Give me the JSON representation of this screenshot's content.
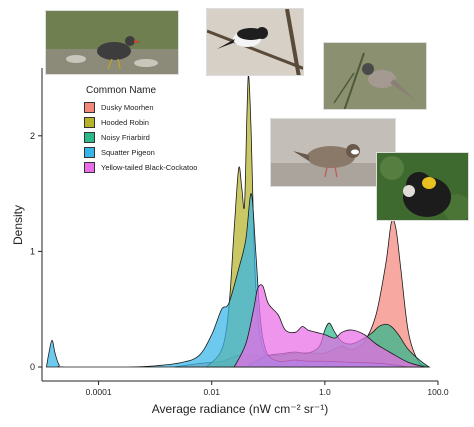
{
  "chart_data": {
    "type": "area",
    "title": "",
    "xlabel": "Average radiance (nW cm⁻² sr⁻¹)",
    "ylabel": "Density",
    "xscale": "log10",
    "xlim": [
      1e-05,
      100
    ],
    "ylim": [
      0,
      2.5
    ],
    "xticks": [
      {
        "value": 0.0001,
        "label": "0.0001"
      },
      {
        "value": 0.01,
        "label": "0.01"
      },
      {
        "value": 1,
        "label": "1.0"
      },
      {
        "value": 100,
        "label": "100.0"
      }
    ],
    "yticks": [
      {
        "value": 0,
        "label": "0"
      },
      {
        "value": 1,
        "label": "1"
      },
      {
        "value": 2,
        "label": "2"
      }
    ],
    "grid": false,
    "legend": {
      "title": "Common Name",
      "position": "top-left"
    },
    "series": [
      {
        "name": "Dusky Moorhen",
        "color": "#f4877b",
        "x": [
          0.0022,
          0.006,
          0.015,
          0.03,
          0.07,
          0.15,
          0.3,
          0.6,
          1.0,
          1.4,
          2.0,
          3.0,
          5.0,
          8.0,
          12.0,
          15.0,
          18.0,
          22.0,
          30.0,
          45.0,
          70.0
        ],
        "values": [
          0,
          0.03,
          0.05,
          0.1,
          0.1,
          0.1,
          0.12,
          0.12,
          0.12,
          0.15,
          0.18,
          0.15,
          0.22,
          0.45,
          0.9,
          1.25,
          1.2,
          0.85,
          0.3,
          0.05,
          0
        ]
      },
      {
        "name": "Hooded Robin",
        "color": "#b5b32a",
        "x": [
          0.008,
          0.015,
          0.02,
          0.025,
          0.03,
          0.034,
          0.038,
          0.042,
          0.045,
          0.05,
          0.055,
          0.06,
          0.07,
          0.09,
          0.12,
          0.15
        ],
        "values": [
          0,
          0.15,
          0.5,
          1.2,
          1.72,
          1.55,
          1.4,
          2.2,
          2.52,
          2.0,
          1.2,
          0.7,
          0.3,
          0.1,
          0.03,
          0
        ]
      },
      {
        "name": "Noisy Friarbird",
        "color": "#2bb88a",
        "x": [
          0.04,
          0.06,
          0.1,
          0.2,
          0.3,
          0.5,
          0.8,
          1.0,
          1.2,
          1.5,
          2.0,
          3.0,
          5.0,
          7.0,
          9.0,
          12.0,
          15.0,
          20.0,
          30.0,
          50.0,
          70.0
        ],
        "values": [
          0,
          0.05,
          0.1,
          0.12,
          0.13,
          0.12,
          0.18,
          0.32,
          0.38,
          0.3,
          0.22,
          0.2,
          0.25,
          0.3,
          0.35,
          0.37,
          0.35,
          0.28,
          0.15,
          0.05,
          0
        ]
      },
      {
        "name": "Squatter Pigeon",
        "color": "#35b6e8",
        "x": [
          1.2e-05,
          1.3e-05,
          1.5e-05,
          1.7e-05,
          2e-05,
          2.5e-05,
          0.0003,
          0.001,
          0.003,
          0.006,
          0.01,
          0.015,
          0.02,
          0.03,
          0.04,
          0.05,
          0.06,
          0.07,
          0.08,
          0.1,
          0.15,
          0.2,
          0.3,
          0.5,
          1.0,
          3.0,
          10.0,
          30.0
        ],
        "values": [
          0,
          0.1,
          0.23,
          0.12,
          0.02,
          0,
          0,
          0.01,
          0.04,
          0.1,
          0.28,
          0.5,
          0.55,
          0.85,
          1.1,
          1.5,
          1.0,
          0.5,
          0.25,
          0.1,
          0.05,
          0.05,
          0.06,
          0.05,
          0.05,
          0.04,
          0.03,
          0
        ]
      },
      {
        "name": "Yellow-tailed Black-Cockatoo",
        "color": "#e96ce8",
        "x": [
          0.025,
          0.04,
          0.055,
          0.065,
          0.08,
          0.1,
          0.15,
          0.2,
          0.3,
          0.4,
          0.5,
          0.7,
          1.0,
          1.5,
          2.0,
          3.0,
          5.0,
          8.0,
          15.0,
          30.0,
          60.0
        ],
        "values": [
          0,
          0.2,
          0.5,
          0.68,
          0.7,
          0.55,
          0.45,
          0.32,
          0.3,
          0.35,
          0.32,
          0.3,
          0.28,
          0.25,
          0.3,
          0.32,
          0.28,
          0.2,
          0.12,
          0.04,
          0
        ]
      }
    ]
  },
  "photos": [
    {
      "name": "dusky-moorhen-photo",
      "bg": "#7a8a5a",
      "bird": "#3d3d3d"
    },
    {
      "name": "hooded-robin-photo",
      "bg": "#c9c2b8",
      "bird": "#222222"
    },
    {
      "name": "noisy-friarbird-photo",
      "bg": "#8a9070",
      "bird": "#9a8f88"
    },
    {
      "name": "squatter-pigeon-photo",
      "bg": "#b9b4ad",
      "bird": "#8a7868"
    },
    {
      "name": "cockatoo-photo",
      "bg": "#3f6a2f",
      "bird": "#1c1c1c"
    }
  ]
}
